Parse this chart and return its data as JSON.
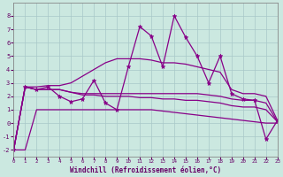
{
  "xlabel": "Windchill (Refroidissement éolien,°C)",
  "xlim": [
    0,
    23
  ],
  "ylim": [
    -2.5,
    9.0
  ],
  "yticks": [
    -2,
    -1,
    0,
    1,
    2,
    3,
    4,
    5,
    6,
    7,
    8
  ],
  "xticks": [
    0,
    1,
    2,
    3,
    4,
    5,
    6,
    7,
    8,
    9,
    10,
    11,
    12,
    13,
    14,
    15,
    16,
    17,
    18,
    19,
    20,
    21,
    22,
    23
  ],
  "background_color": "#cbe8e0",
  "grid_color": "#a8c8c8",
  "line_color": "#880088",
  "line_zigzag": [
    -2.0,
    2.7,
    2.5,
    2.7,
    2.0,
    1.6,
    1.8,
    3.2,
    1.5,
    1.0,
    4.2,
    7.2,
    6.5,
    4.2,
    8.0,
    6.4,
    5.0,
    3.0,
    5.0,
    2.2,
    1.8,
    1.7,
    -1.2,
    0.2
  ],
  "line_upper": [
    -2.0,
    2.7,
    2.7,
    2.8,
    2.8,
    3.0,
    3.5,
    4.0,
    4.5,
    4.8,
    4.8,
    4.8,
    4.7,
    4.5,
    4.5,
    4.4,
    4.2,
    4.0,
    3.8,
    2.5,
    2.2,
    2.2,
    2.0,
    0.2
  ],
  "line_mid1": [
    -2.0,
    2.7,
    2.5,
    2.5,
    2.5,
    2.3,
    2.2,
    2.2,
    2.2,
    2.2,
    2.2,
    2.2,
    2.2,
    2.2,
    2.2,
    2.2,
    2.2,
    2.1,
    2.0,
    1.8,
    1.7,
    1.7,
    1.5,
    0.1
  ],
  "line_mid2": [
    -2.0,
    2.7,
    2.5,
    2.5,
    2.5,
    2.3,
    2.1,
    2.1,
    2.0,
    2.0,
    2.0,
    1.9,
    1.9,
    1.8,
    1.8,
    1.7,
    1.7,
    1.6,
    1.5,
    1.3,
    1.2,
    1.2,
    1.0,
    0.1
  ],
  "line_bottom": [
    -2.0,
    -2.0,
    1.0,
    1.0,
    1.0,
    1.0,
    1.0,
    1.0,
    1.0,
    1.0,
    1.0,
    1.0,
    1.0,
    0.9,
    0.8,
    0.7,
    0.6,
    0.5,
    0.4,
    0.3,
    0.2,
    0.1,
    0.0,
    0.0
  ]
}
